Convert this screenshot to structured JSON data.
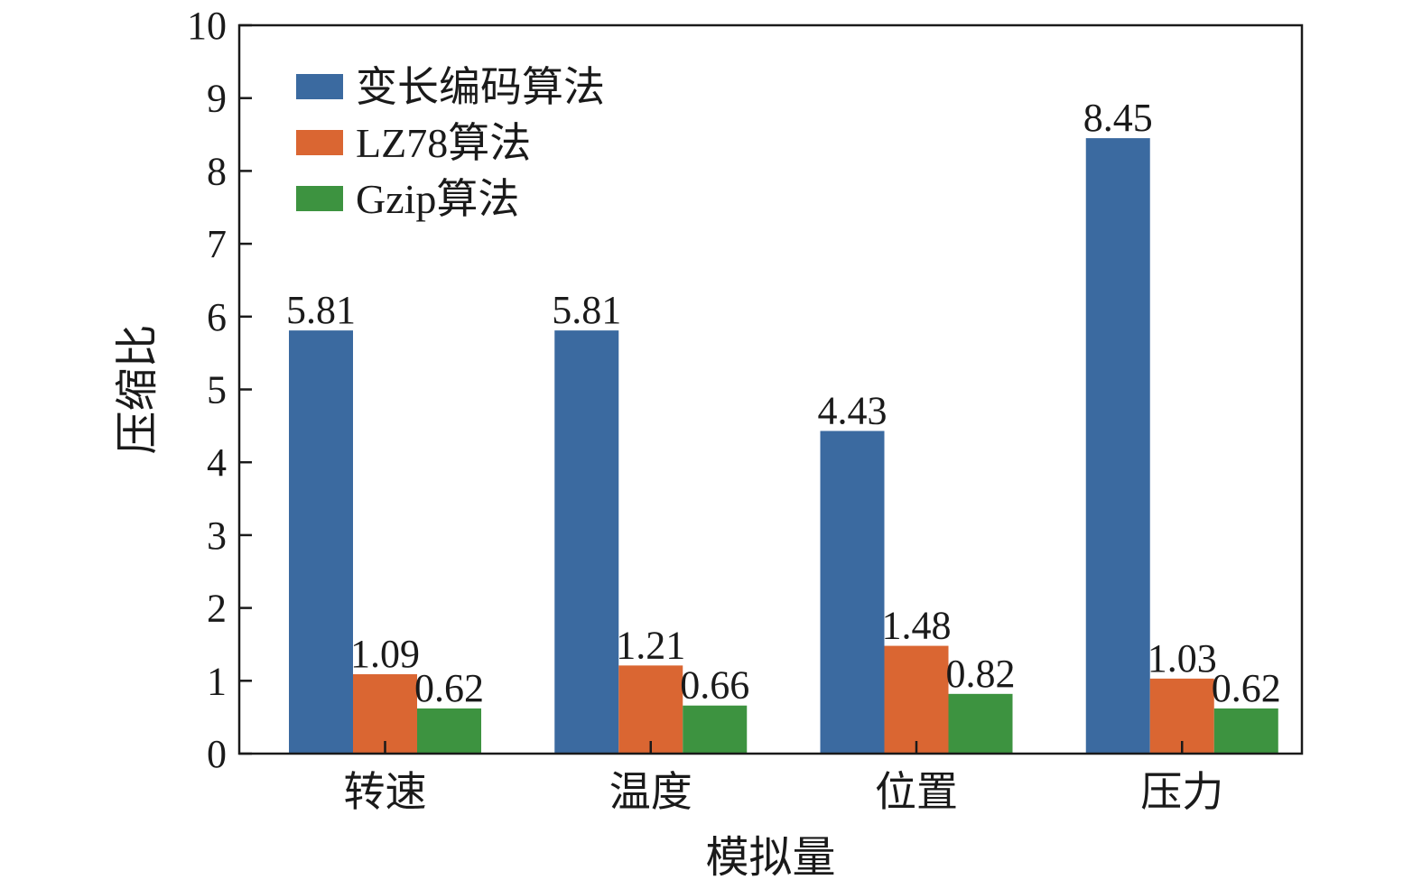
{
  "chart_data": {
    "type": "bar",
    "categories": [
      "转速",
      "温度",
      "位置",
      "压力"
    ],
    "series": [
      {
        "name": "变长编码算法",
        "values": [
          5.81,
          5.81,
          4.43,
          8.45
        ],
        "color": "#3b6aa0"
      },
      {
        "name": "LZ78算法",
        "values": [
          1.09,
          1.21,
          1.48,
          1.03
        ],
        "color": "#da6632"
      },
      {
        "name": "Gzip算法",
        "values": [
          0.62,
          0.66,
          0.82,
          0.62
        ],
        "color": "#3d9340"
      }
    ],
    "value_labels": [
      [
        "5.81",
        "5.81",
        "4.43",
        "8.45"
      ],
      [
        "1.09",
        "1.21",
        "1.48",
        "1.03"
      ],
      [
        "0.62",
        "0.66",
        "0.82",
        "0.62"
      ]
    ],
    "xlabel": "模拟量",
    "ylabel": "压缩比",
    "ylim": [
      0,
      10
    ],
    "yticks": [
      0,
      1,
      2,
      3,
      4,
      5,
      6,
      7,
      8,
      9,
      10
    ],
    "ytick_labels": [
      "0",
      "1",
      "2",
      "3",
      "4",
      "5",
      "6",
      "7",
      "8",
      "9",
      "10"
    ],
    "legend_position": "top-left",
    "grid": false
  }
}
